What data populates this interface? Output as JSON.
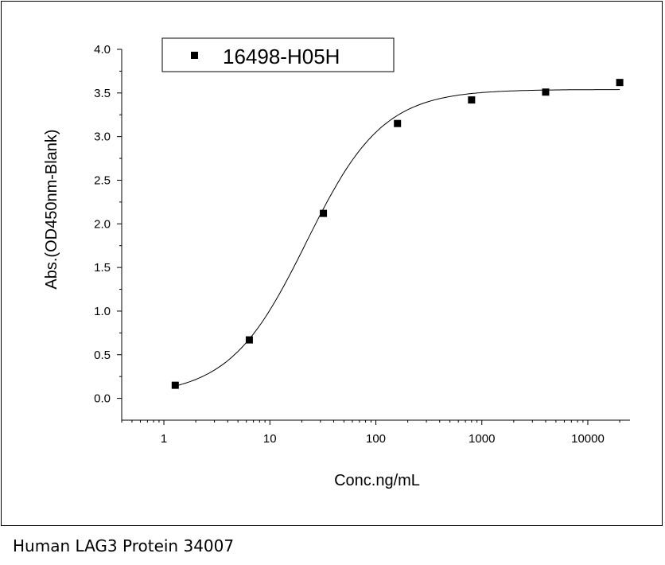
{
  "chart_data": {
    "type": "scatter",
    "title": "",
    "xlabel": "Conc.ng/mL",
    "ylabel": "Abs.(OD450nm-Blank)",
    "x_scale": "log",
    "xlim": [
      0.4,
      25000
    ],
    "ylim": [
      -0.25,
      4.0
    ],
    "x_ticks": [
      1,
      10,
      100,
      1000,
      10000
    ],
    "x_tick_labels": [
      "1",
      "10",
      "100",
      "1000",
      "10000"
    ],
    "y_ticks": [
      0.0,
      0.5,
      1.0,
      1.5,
      2.0,
      2.5,
      3.0,
      3.5,
      4.0
    ],
    "y_tick_labels": [
      "0.0",
      "0.5",
      "1.0",
      "1.5",
      "2.0",
      "2.5",
      "3.0",
      "3.5",
      "4.0"
    ],
    "legend_position": "top-left",
    "grid": false,
    "series": [
      {
        "name": "16498-H05H",
        "marker": "square",
        "color": "#000000",
        "x": [
          1.28,
          6.4,
          32,
          160,
          800,
          4000,
          20000
        ],
        "y": [
          0.15,
          0.67,
          2.12,
          3.15,
          3.42,
          3.51,
          3.62
        ]
      }
    ],
    "fit_curve": {
      "type": "4PL",
      "bottom": 0.03,
      "top": 3.54,
      "ec50": 22,
      "hill": 1.2
    }
  },
  "caption": "Human LAG3 Protein 34007"
}
